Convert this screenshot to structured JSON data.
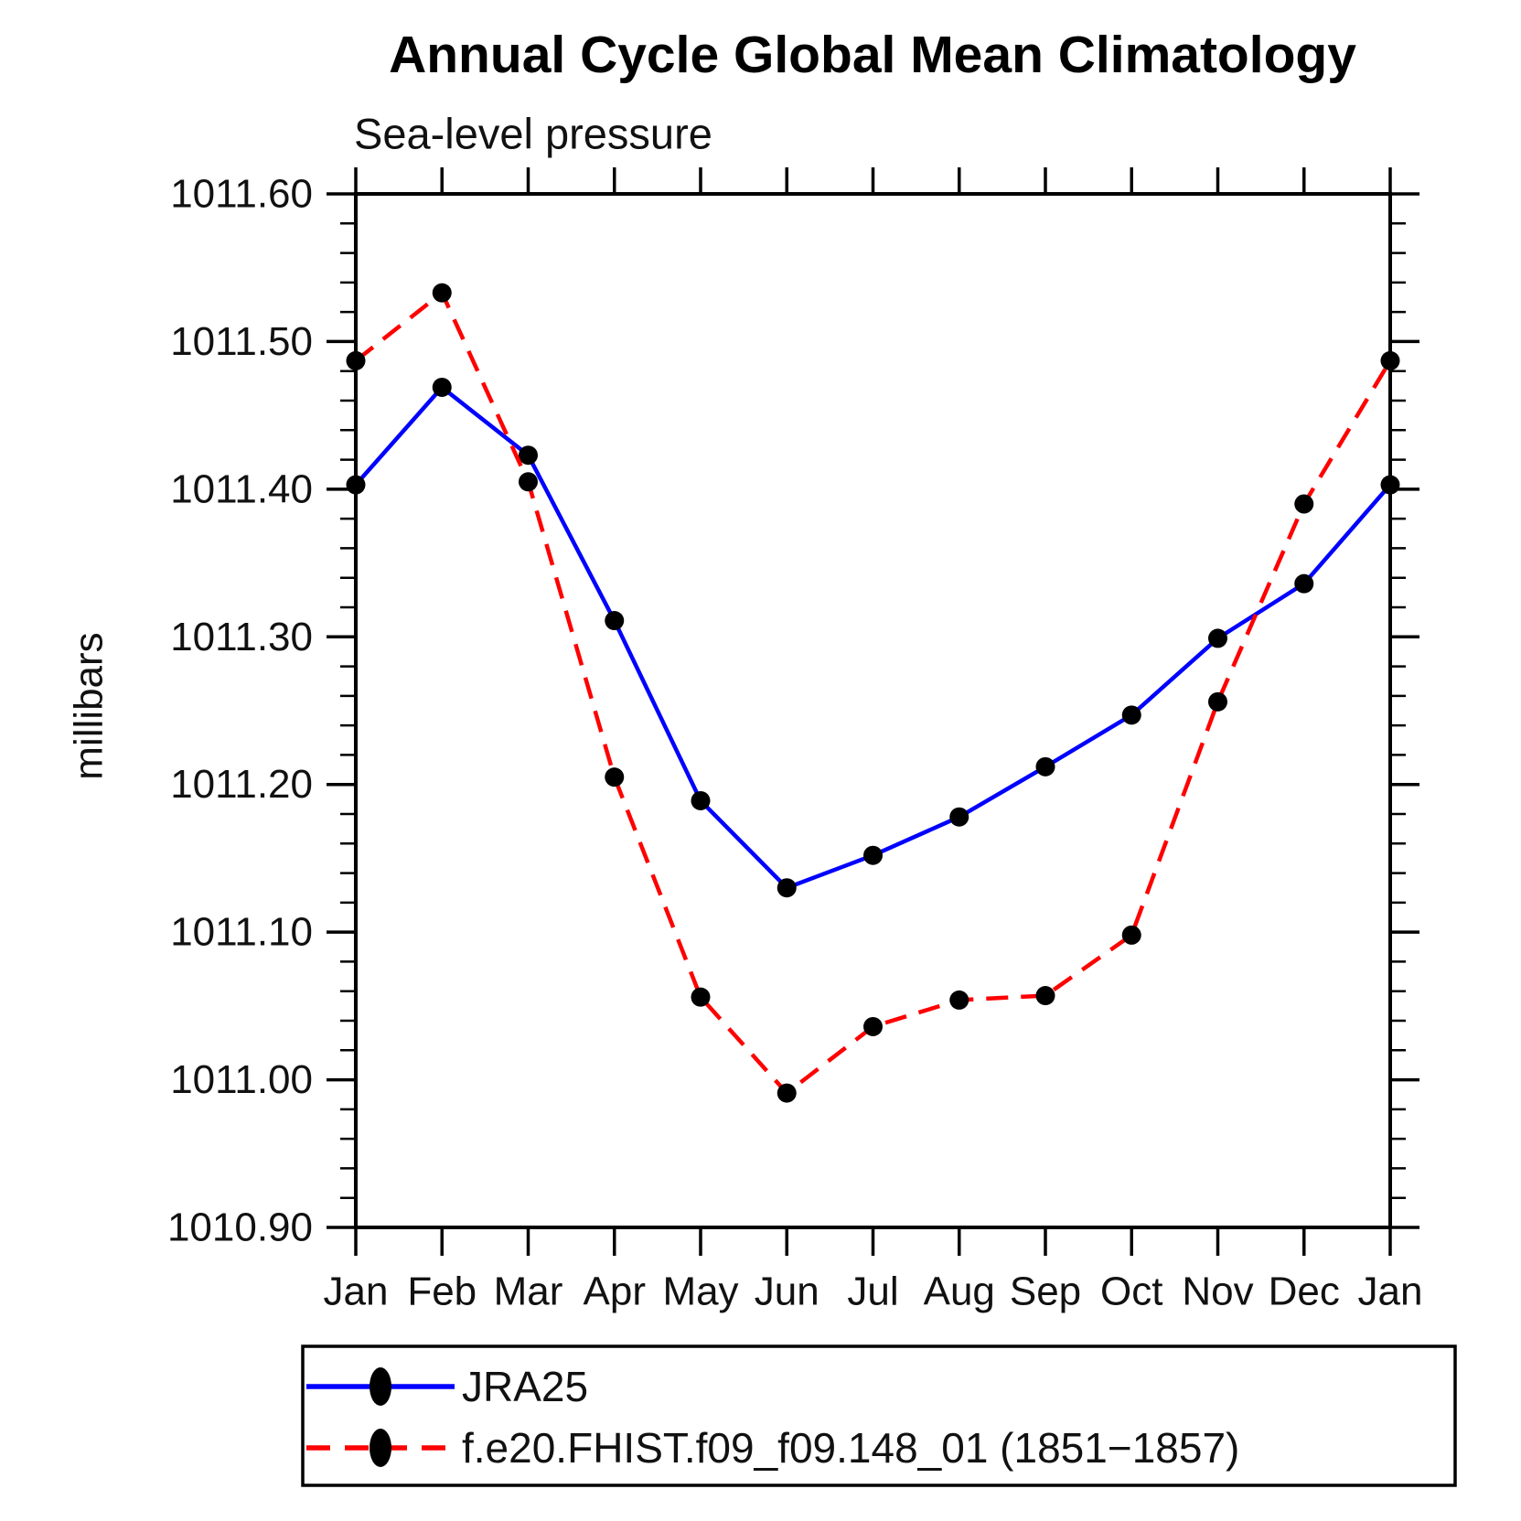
{
  "chart_data": {
    "type": "line",
    "title": "Annual Cycle Global Mean Climatology",
    "subtitle": "Sea-level pressure",
    "ylabel": "millibars",
    "xlabel": "",
    "x_categories": [
      "Jan",
      "Feb",
      "Mar",
      "Apr",
      "May",
      "Jun",
      "Jul",
      "Aug",
      "Sep",
      "Oct",
      "Nov",
      "Dec",
      "Jan"
    ],
    "ylim": [
      1010.9,
      1011.6
    ],
    "ytick_major_step": 0.1,
    "ytick_minor_step": 0.02,
    "ytick_labels": [
      "1011.60",
      "1011.50",
      "1011.40",
      "1011.30",
      "1011.20",
      "1011.10",
      "1011.00",
      "1010.90"
    ],
    "grid": "off",
    "legend_position": "bottom-left-box",
    "marker_color": "#000000",
    "axis_color": "#000000",
    "series": [
      {
        "name": "JRA25",
        "color": "#0000ff",
        "style": "solid",
        "values": [
          1011.403,
          1011.469,
          1011.423,
          1011.311,
          1011.189,
          1011.13,
          1011.152,
          1011.178,
          1011.212,
          1011.247,
          1011.299,
          1011.336,
          1011.403
        ]
      },
      {
        "name": "f.e20.FHIST.f09_f09.148_01 (1851−1857)",
        "color": "#ff0000",
        "style": "dashed",
        "values": [
          1011.487,
          1011.533,
          1011.405,
          1011.205,
          1011.056,
          1010.991,
          1011.036,
          1011.054,
          1011.057,
          1011.098,
          1011.256,
          1011.39,
          1011.487
        ]
      }
    ]
  }
}
